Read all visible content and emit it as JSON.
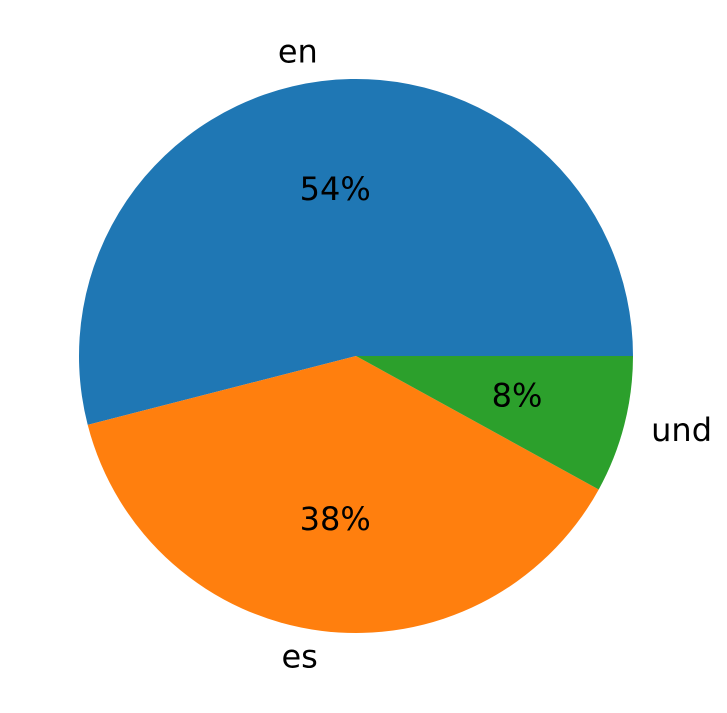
{
  "chart_data": {
    "type": "pie",
    "categories": [
      "en",
      "es",
      "und"
    ],
    "values": [
      54,
      38,
      8
    ],
    "value_labels": [
      "54%",
      "38%",
      "8%"
    ],
    "colors": [
      "#1f77b4",
      "#ff7f0e",
      "#2ca02c"
    ]
  }
}
